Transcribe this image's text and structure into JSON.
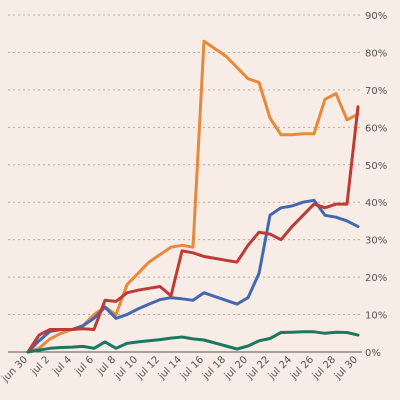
{
  "chart_data": {
    "type": "line",
    "title": "",
    "xlabel": "",
    "ylabel": "",
    "ylim": [
      0,
      90
    ],
    "yticks": [
      "0%",
      "10%",
      "20%",
      "30%",
      "40%",
      "50%",
      "60%",
      "70%",
      "80%",
      "90%"
    ],
    "ytick_values": [
      0,
      10,
      20,
      30,
      40,
      50,
      60,
      70,
      80,
      90
    ],
    "x": [
      "jun 30",
      "jul 1",
      "jul 2",
      "jul 3",
      "jul 4",
      "jul 5",
      "jul 6",
      "jul 7",
      "jul 8",
      "jul 9",
      "jul 10",
      "jul 11",
      "jul 12",
      "jul 13",
      "jul 14",
      "jul 15",
      "jul 16",
      "jul 17",
      "jul 18",
      "jul 19",
      "jul 20",
      "jul 21",
      "jul 22",
      "jul 23",
      "jul 24",
      "jul 25",
      "jul 26",
      "jul 27",
      "jul 28",
      "jul 29",
      "jul 30"
    ],
    "xticks": [
      "jun 30",
      "jul 2",
      "jul 4",
      "jul 6",
      "jul 8",
      "jul 10",
      "jul 12",
      "jul 14",
      "jul 16",
      "jul 18",
      "jul 20",
      "jul 22",
      "jul 24",
      "jul 26",
      "jul 28",
      "jul 30"
    ],
    "grid": true,
    "y_axis_position": "right",
    "series": [
      {
        "color": "#e8883a",
        "points": [
          [
            0,
            0
          ],
          [
            1,
            1
          ],
          [
            2,
            3.5
          ],
          [
            3,
            5
          ],
          [
            4,
            6
          ],
          [
            5,
            7
          ],
          [
            6,
            10
          ],
          [
            7,
            12
          ],
          [
            8,
            10
          ],
          [
            9,
            18
          ],
          [
            10,
            21
          ],
          [
            11,
            24
          ],
          [
            12,
            26
          ],
          [
            13,
            28
          ],
          [
            14,
            28.5
          ],
          [
            15,
            28
          ],
          [
            16,
            83
          ],
          [
            17,
            81
          ],
          [
            18,
            79
          ],
          [
            19,
            76
          ],
          [
            20,
            73
          ],
          [
            21,
            72
          ],
          [
            22,
            62.5
          ],
          [
            23,
            58
          ],
          [
            24,
            58
          ],
          [
            25,
            58.3
          ],
          [
            26,
            58.3
          ],
          [
            27,
            67.5
          ],
          [
            28,
            69
          ],
          [
            29,
            62
          ],
          [
            30,
            63.5
          ]
        ]
      },
      {
        "color": "#4468b0",
        "points": [
          [
            0,
            0
          ],
          [
            1,
            3
          ],
          [
            2,
            5.5
          ],
          [
            3,
            6
          ],
          [
            4,
            6
          ],
          [
            5,
            7
          ],
          [
            6,
            9
          ],
          [
            7,
            12
          ],
          [
            8,
            9
          ],
          [
            9,
            10
          ],
          [
            10,
            11.5
          ],
          [
            11,
            12.8
          ],
          [
            12,
            14
          ],
          [
            13,
            14.5
          ],
          [
            14,
            14.2
          ],
          [
            15,
            13.8
          ],
          [
            16,
            15.8
          ],
          [
            17,
            14.8
          ],
          [
            18,
            13.8
          ],
          [
            19,
            12.8
          ],
          [
            20,
            14.5
          ],
          [
            21,
            21
          ],
          [
            22,
            36.5
          ],
          [
            23,
            38.5
          ],
          [
            24,
            39
          ],
          [
            25,
            40
          ],
          [
            26,
            40.5
          ],
          [
            27,
            36.5
          ],
          [
            28,
            36
          ],
          [
            29,
            35
          ],
          [
            30,
            33.5
          ]
        ]
      },
      {
        "color": "#c03a35",
        "points": [
          [
            0,
            0
          ],
          [
            1,
            4.5
          ],
          [
            2,
            6
          ],
          [
            3,
            6
          ],
          [
            4,
            6
          ],
          [
            5,
            6.2
          ],
          [
            6,
            6
          ],
          [
            7,
            13.8
          ],
          [
            8,
            13.5
          ],
          [
            9,
            15.8
          ],
          [
            10,
            16.5
          ],
          [
            11,
            17
          ],
          [
            12,
            17.5
          ],
          [
            13,
            15
          ],
          [
            14,
            27
          ],
          [
            15,
            26.5
          ],
          [
            16,
            25.5
          ],
          [
            17,
            25
          ],
          [
            18,
            24.5
          ],
          [
            19,
            24
          ],
          [
            20,
            28.5
          ],
          [
            21,
            32
          ],
          [
            22,
            31.5
          ],
          [
            23,
            30
          ],
          [
            24,
            33.5
          ],
          [
            25,
            36.5
          ],
          [
            26,
            39.5
          ],
          [
            27,
            38.5
          ],
          [
            28,
            39.5
          ],
          [
            29,
            39.5
          ],
          [
            30,
            65.5
          ]
        ]
      },
      {
        "color": "#1a7860",
        "points": [
          [
            0,
            0
          ],
          [
            1,
            0.5
          ],
          [
            2,
            1
          ],
          [
            3,
            1.2
          ],
          [
            4,
            1.3
          ],
          [
            5,
            1.5
          ],
          [
            6,
            1
          ],
          [
            7,
            2.7
          ],
          [
            8,
            1
          ],
          [
            9,
            2.3
          ],
          [
            10,
            2.7
          ],
          [
            11,
            3
          ],
          [
            12,
            3.3
          ],
          [
            13,
            3.7
          ],
          [
            14,
            4
          ],
          [
            15,
            3.5
          ],
          [
            16,
            3.2
          ],
          [
            17,
            2.4
          ],
          [
            18,
            1.6
          ],
          [
            19,
            0.8
          ],
          [
            20,
            1.6
          ],
          [
            21,
            3
          ],
          [
            22,
            3.6
          ],
          [
            23,
            5.2
          ],
          [
            24,
            5.3
          ],
          [
            25,
            5.4
          ],
          [
            26,
            5.4
          ],
          [
            27,
            5
          ],
          [
            28,
            5.3
          ],
          [
            29,
            5.2
          ],
          [
            30,
            4.5
          ]
        ]
      }
    ]
  }
}
